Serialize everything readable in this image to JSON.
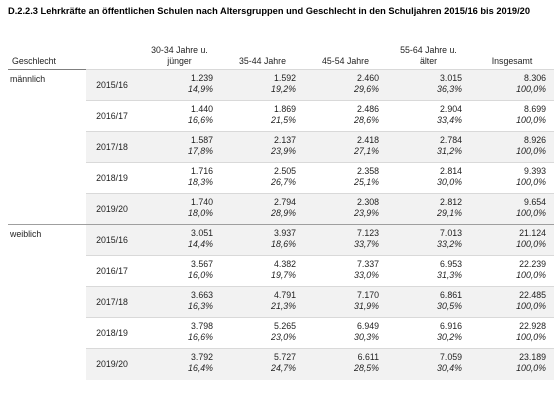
{
  "title": "D.2.2.3 Lehrkräfte an öffentlichen Schulen nach Altersgruppen und Geschlecht in den Schuljahren 2015/16 bis 2019/20",
  "columns": {
    "gender": "Geschlecht",
    "age1": "30-34 Jahre u. jünger",
    "age2": "35-44 Jahre",
    "age3": "45-54 Jahre",
    "age4": "55-64 Jahre u. älter",
    "total": "Insgesamt"
  },
  "groups": [
    {
      "gender": "männlich",
      "rows": [
        {
          "year": "2015/16",
          "vals": [
            "1.239",
            "1.592",
            "2.460",
            "3.015",
            "8.306"
          ],
          "pcts": [
            "14,9%",
            "19,2%",
            "29,6%",
            "36,3%",
            "100,0%"
          ]
        },
        {
          "year": "2016/17",
          "vals": [
            "1.440",
            "1.869",
            "2.486",
            "2.904",
            "8.699"
          ],
          "pcts": [
            "16,6%",
            "21,5%",
            "28,6%",
            "33,4%",
            "100,0%"
          ]
        },
        {
          "year": "2017/18",
          "vals": [
            "1.587",
            "2.137",
            "2.418",
            "2.784",
            "8.926"
          ],
          "pcts": [
            "17,8%",
            "23,9%",
            "27,1%",
            "31,2%",
            "100,0%"
          ]
        },
        {
          "year": "2018/19",
          "vals": [
            "1.716",
            "2.505",
            "2.358",
            "2.814",
            "9.393"
          ],
          "pcts": [
            "18,3%",
            "26,7%",
            "25,1%",
            "30,0%",
            "100,0%"
          ]
        },
        {
          "year": "2019/20",
          "vals": [
            "1.740",
            "2.794",
            "2.308",
            "2.812",
            "9.654"
          ],
          "pcts": [
            "18,0%",
            "28,9%",
            "23,9%",
            "29,1%",
            "100,0%"
          ]
        }
      ]
    },
    {
      "gender": "weiblich",
      "rows": [
        {
          "year": "2015/16",
          "vals": [
            "3.051",
            "3.937",
            "7.123",
            "7.013",
            "21.124"
          ],
          "pcts": [
            "14,4%",
            "18,6%",
            "33,7%",
            "33,2%",
            "100,0%"
          ]
        },
        {
          "year": "2016/17",
          "vals": [
            "3.567",
            "4.382",
            "7.337",
            "6.953",
            "22.239"
          ],
          "pcts": [
            "16,0%",
            "19,7%",
            "33,0%",
            "31,3%",
            "100,0%"
          ]
        },
        {
          "year": "2017/18",
          "vals": [
            "3.663",
            "4.791",
            "7.170",
            "6.861",
            "22.485"
          ],
          "pcts": [
            "16,3%",
            "21,3%",
            "31,9%",
            "30,5%",
            "100,0%"
          ]
        },
        {
          "year": "2018/19",
          "vals": [
            "3.798",
            "5.265",
            "6.949",
            "6.916",
            "22.928"
          ],
          "pcts": [
            "16,6%",
            "23,0%",
            "30,3%",
            "30,2%",
            "100,0%"
          ]
        },
        {
          "year": "2019/20",
          "vals": [
            "3.792",
            "5.727",
            "6.611",
            "7.059",
            "23.189"
          ],
          "pcts": [
            "16,4%",
            "24,7%",
            "28,5%",
            "30,4%",
            "100,0%"
          ]
        }
      ]
    }
  ]
}
